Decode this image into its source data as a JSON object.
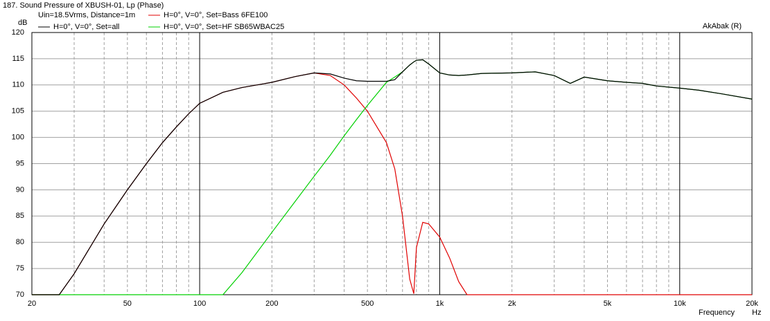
{
  "chart_data": {
    "type": "line",
    "title": "187. Sound Pressure of XBUSH-01, Lp (Phase)",
    "subtitle": "Uin=18.5Vrms, Distance=1m",
    "y_label": "dB",
    "x_label": "Frequency",
    "x_unit": "Hz",
    "annotation": "AkAbak (R)",
    "x_scale": "log",
    "grid": true,
    "x": [
      20,
      26,
      30,
      40,
      50,
      60,
      70,
      80,
      90,
      100,
      125,
      150,
      200,
      250,
      300,
      350,
      400,
      450,
      500,
      600,
      650,
      700,
      750,
      780,
      800,
      850,
      900,
      1000,
      1100,
      1200,
      1300,
      1500,
      2000,
      2500,
      3000,
      3500,
      4000,
      5000,
      6000,
      7000,
      8000,
      10000,
      12000,
      15000,
      20000
    ],
    "series": [
      {
        "name": "H=0°, V=0°, Set=all",
        "color": "#000000",
        "values": [
          70,
          70,
          74,
          83.5,
          90,
          95,
          99,
          102,
          104.5,
          106.5,
          108.6,
          109.5,
          110.5,
          111.6,
          112.3,
          112.1,
          111.3,
          110.8,
          110.7,
          110.7,
          111,
          112.5,
          113.8,
          114.4,
          114.7,
          114.8,
          114,
          112.3,
          111.9,
          111.8,
          111.9,
          112.2,
          112.3,
          112.5,
          111.8,
          110.3,
          111.5,
          110.8,
          110.5,
          110.3,
          109.8,
          109.4,
          109,
          108.3,
          107.3
        ]
      },
      {
        "name": "H=0°, V=0°, Set=Bass 6FE100",
        "color": "#e00000",
        "values": [
          70,
          70,
          74,
          83.5,
          90,
          95,
          99,
          102,
          104.5,
          106.5,
          108.6,
          109.5,
          110.5,
          111.6,
          112.3,
          111.8,
          110,
          107.5,
          105,
          99,
          94,
          85,
          73,
          70.2,
          79,
          83.8,
          83.5,
          81,
          77,
          72.5,
          70,
          70,
          70,
          70,
          70,
          70,
          70,
          70,
          70,
          70,
          70,
          70,
          70,
          70,
          70
        ]
      },
      {
        "name": "H=0°, V=0°, Set=HF SB65WBAC25",
        "color": "#00d000",
        "values": [
          70,
          70,
          70,
          70,
          70,
          70,
          70,
          70,
          70,
          70,
          70,
          74.2,
          81.9,
          87.8,
          92.6,
          96.6,
          100.3,
          103.4,
          106.1,
          110.5,
          111.5,
          112.5,
          113.8,
          114.4,
          114.7,
          114.8,
          114,
          112.3,
          111.9,
          111.8,
          111.9,
          112.2,
          112.3,
          112.5,
          111.8,
          110.3,
          111.5,
          110.8,
          110.5,
          110.3,
          109.8,
          109.4,
          109,
          108.3,
          107.3
        ]
      }
    ],
    "xlim": [
      20,
      20000
    ],
    "ylim": [
      70,
      120
    ],
    "xticks": [
      20,
      50,
      100,
      200,
      500,
      {
        "value": 1000,
        "label": "1k"
      },
      {
        "value": 2000,
        "label": "2k"
      },
      {
        "value": 5000,
        "label": "5k"
      },
      {
        "value": 10000,
        "label": "10k"
      },
      {
        "value": 20000,
        "label": "20k"
      }
    ],
    "xminor": [
      30,
      40,
      60,
      70,
      80,
      90,
      300,
      400,
      600,
      700,
      800,
      900,
      3000,
      4000,
      6000,
      7000,
      8000,
      9000
    ],
    "yticks": [
      70,
      75,
      80,
      85,
      90,
      95,
      100,
      105,
      110,
      115,
      120
    ]
  }
}
